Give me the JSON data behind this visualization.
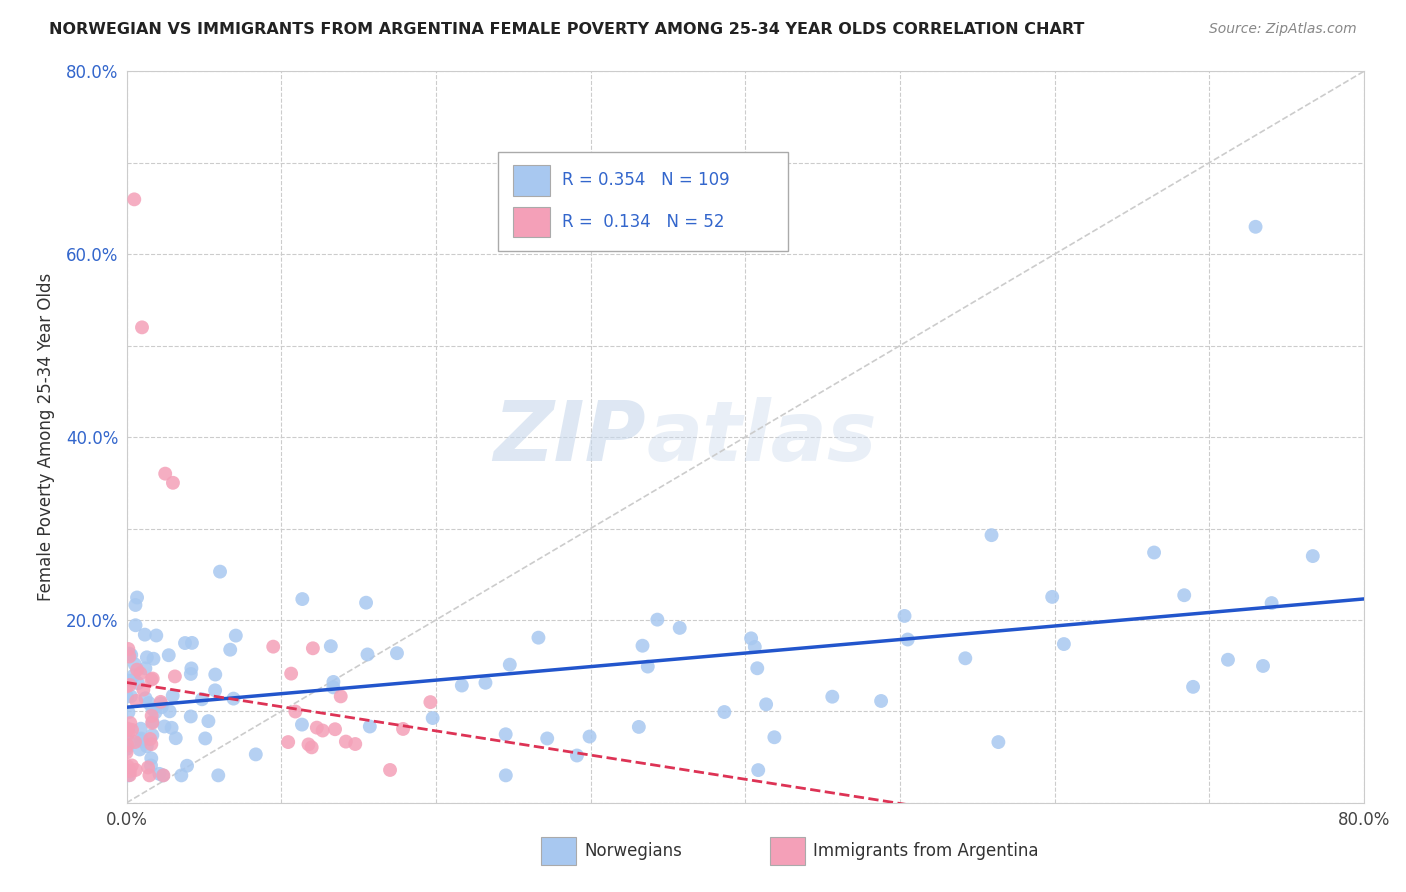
{
  "title": "NORWEGIAN VS IMMIGRANTS FROM ARGENTINA FEMALE POVERTY AMONG 25-34 YEAR OLDS CORRELATION CHART",
  "source": "Source: ZipAtlas.com",
  "ylabel": "Female Poverty Among 25-34 Year Olds",
  "xlabel": "",
  "xlim": [
    0.0,
    0.8
  ],
  "ylim": [
    0.0,
    0.8
  ],
  "norwegian_color": "#a8c8f0",
  "argentina_color": "#f4a0b8",
  "norwegian_line_color": "#2255cc",
  "argentina_line_color": "#dd3355",
  "R_norwegian": 0.354,
  "N_norwegian": 109,
  "R_argentina": 0.134,
  "N_argentina": 52,
  "watermark_zip": "ZIP",
  "watermark_atlas": "atlas",
  "background_color": "#ffffff",
  "grid_color": "#cccccc",
  "title_color": "#222222",
  "source_color": "#888888",
  "ylabel_color": "#333333",
  "tick_label_color": "#3366cc",
  "legend_text_color": "#3366cc"
}
